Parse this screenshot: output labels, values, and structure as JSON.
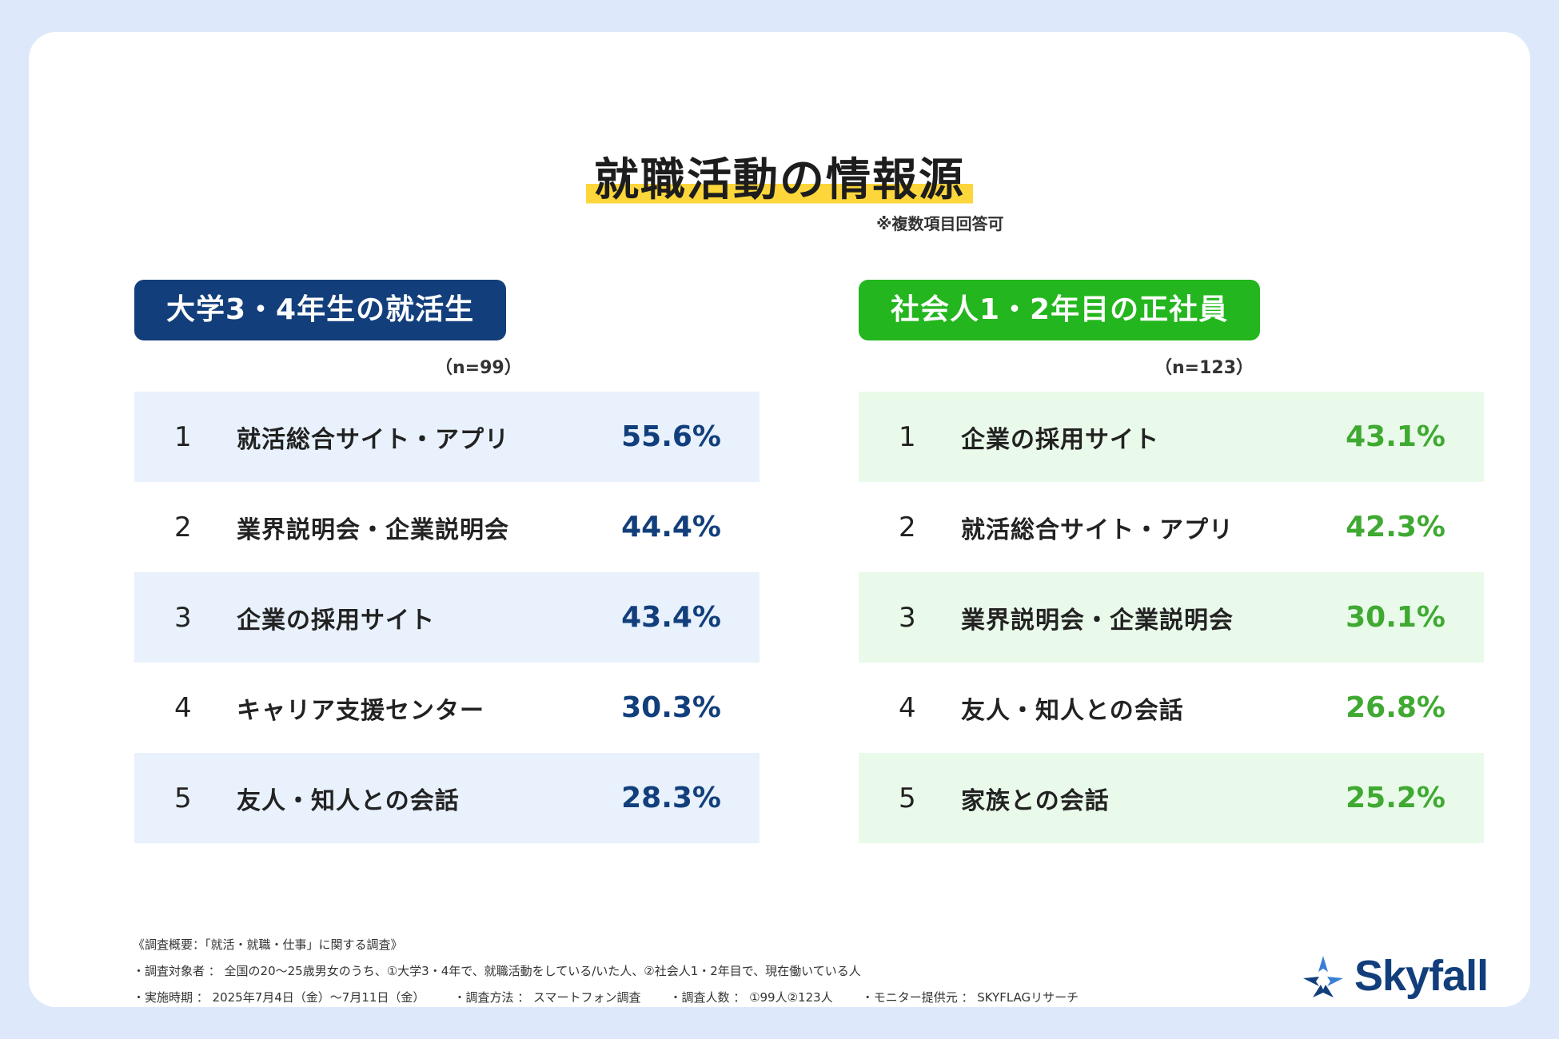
{
  "title": "就職活動の情報源",
  "note": "※複数項目回答可",
  "colors": {
    "background": "#dde9fb",
    "highlight": "#fcd63b",
    "left_accent": "#123f7c",
    "right_accent": "#23b61e",
    "right_value": "#3fa932",
    "left_row_shade": "#e8f1fc",
    "right_row_shade": "#eafaea"
  },
  "chart_data": [
    {
      "type": "table",
      "title": "大学3・4年生の就活生",
      "sample": "（n=99）",
      "rows": [
        {
          "rank": "1",
          "label": "就活総合サイト・アプリ",
          "value": "55.6%"
        },
        {
          "rank": "2",
          "label": "業界説明会・企業説明会",
          "value": "44.4%"
        },
        {
          "rank": "3",
          "label": "企業の採用サイト",
          "value": "43.4%"
        },
        {
          "rank": "4",
          "label": "キャリア支援センター",
          "value": "30.3%"
        },
        {
          "rank": "5",
          "label": "友人・知人との会話",
          "value": "28.3%"
        }
      ]
    },
    {
      "type": "table",
      "title": "社会人1・2年目の正社員",
      "sample": "（n=123）",
      "rows": [
        {
          "rank": "1",
          "label": "企業の採用サイト",
          "value": "43.1%"
        },
        {
          "rank": "2",
          "label": "就活総合サイト・アプリ",
          "value": "42.3%"
        },
        {
          "rank": "3",
          "label": "業界説明会・企業説明会",
          "value": "30.1%"
        },
        {
          "rank": "4",
          "label": "友人・知人との会話",
          "value": "26.8%"
        },
        {
          "rank": "5",
          "label": "家族との会話",
          "value": "25.2%"
        }
      ]
    }
  ],
  "footer": {
    "heading": "《調査概要：「就活・就職・仕事」に関する調査》",
    "target": "・調査対象者 ： 全国の20〜25歳男女のうち、①大学3・4年で、就職活動をしている/いた人、②社会人1・2年目で、現在働いている人",
    "period": "・実施時期 ： 2025年7月4日（金）〜7月11日（金）",
    "method": "・調査方法 ： スマートフォン調査",
    "count": "・調査人数 ： ①99人②123人",
    "provider": "・モニター提供元 ： SKYFLAGリサーチ"
  },
  "logo": {
    "text": "Skyfall",
    "icon": "skyfall-star-icon"
  }
}
